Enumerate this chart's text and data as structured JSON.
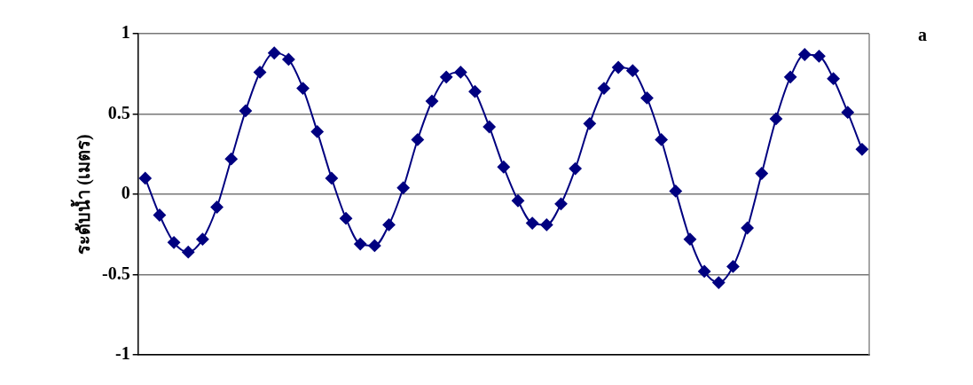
{
  "chart_data": {
    "type": "line",
    "title": "a",
    "ylabel": "ระดับน้ำ (เมตร)",
    "categories": [
      null,
      null,
      null,
      null,
      null,
      null,
      null,
      null,
      null,
      null,
      null,
      null,
      null,
      null,
      null,
      null,
      null,
      null,
      null,
      null,
      null,
      null,
      null,
      null,
      null,
      null,
      null,
      null,
      null,
      null,
      null,
      null,
      null,
      null,
      null,
      null,
      null,
      null,
      null,
      null,
      null,
      null,
      null,
      null,
      null,
      null,
      null,
      null,
      null,
      null,
      null
    ],
    "series": [
      {
        "color": "#000080",
        "values": [
          0.1,
          -0.13,
          -0.3,
          -0.36,
          -0.28,
          -0.08,
          0.22,
          0.52,
          0.76,
          0.88,
          0.84,
          0.66,
          0.39,
          0.1,
          -0.15,
          -0.31,
          -0.32,
          -0.19,
          0.04,
          0.34,
          0.58,
          0.73,
          0.76,
          0.64,
          0.42,
          0.17,
          -0.04,
          -0.18,
          -0.19,
          -0.06,
          0.16,
          0.44,
          0.66,
          0.79,
          0.77,
          0.6,
          0.34,
          0.02,
          -0.28,
          -0.48,
          -0.55,
          -0.45,
          -0.21,
          0.13,
          0.47,
          0.73,
          0.87,
          0.86,
          0.72,
          0.51,
          0.28
        ]
      }
    ],
    "ylim": [
      -1,
      1
    ],
    "yticks": [
      -1,
      -0.5,
      0,
      0.5,
      1
    ],
    "grid": "y",
    "legend": false,
    "marker": "diamond",
    "line_style": "solid",
    "tick_labels": "y"
  }
}
